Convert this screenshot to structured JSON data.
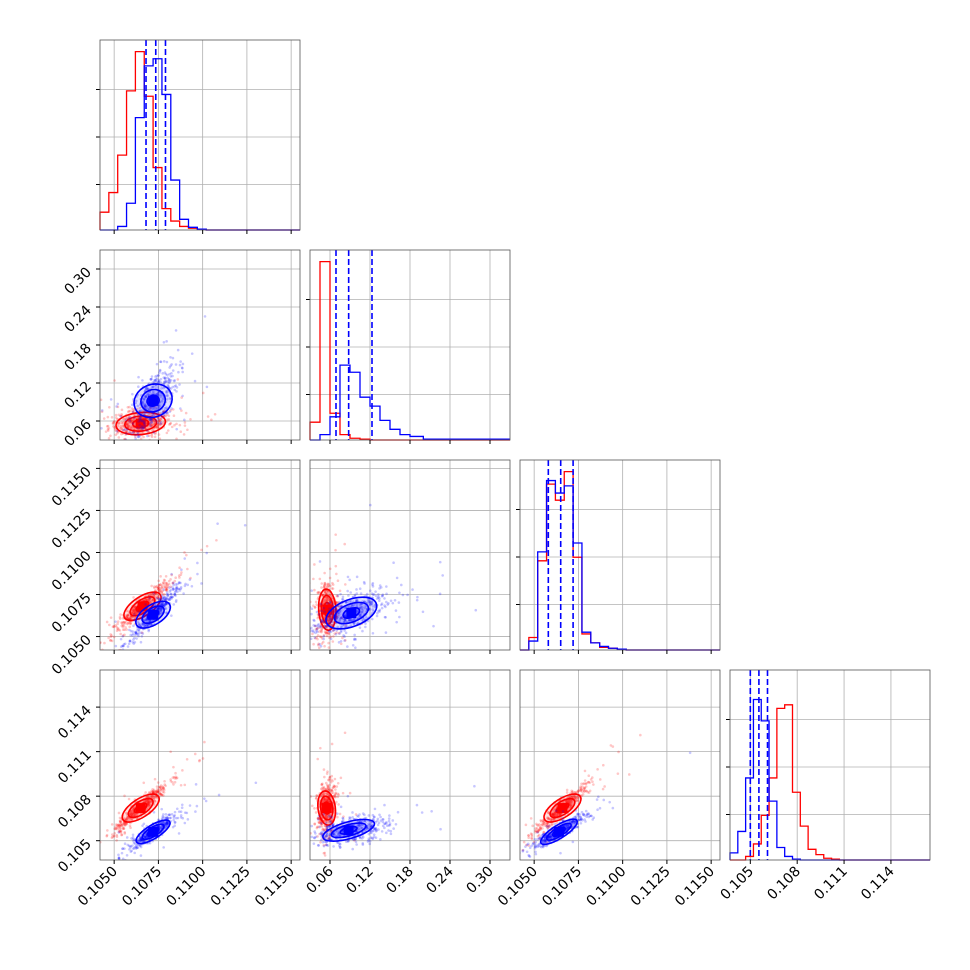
{
  "chart_data": {
    "type": "corner",
    "colors": {
      "blue": "#0000ff",
      "red": "#ff0000",
      "grid": "#b0b0b0",
      "frame": "#555555"
    },
    "params": [
      {
        "lim": [
          0.1042,
          0.1155
        ],
        "ticks": [
          "0.1050",
          "0.1075",
          "0.1100",
          "0.1125",
          "0.1150"
        ],
        "tick_values": [
          0.105,
          0.1075,
          0.11,
          0.1125,
          0.115
        ],
        "rotation": 45
      },
      {
        "lim": [
          0.03,
          0.33
        ],
        "ticks": [
          "0.06",
          "0.12",
          "0.18",
          "0.24",
          "0.30"
        ],
        "tick_values": [
          0.06,
          0.12,
          0.18,
          0.24,
          0.3
        ],
        "rotation": 45
      },
      {
        "lim": [
          0.1042,
          0.1155
        ],
        "ticks": [
          "0.1050",
          "0.1075",
          "0.1100",
          "0.1125",
          "0.1150"
        ],
        "tick_values": [
          0.105,
          0.1075,
          0.11,
          0.1125,
          0.115
        ],
        "rotation": 45
      },
      {
        "lim": [
          0.1037,
          0.1165
        ],
        "ticks": [
          "0.105",
          "0.108",
          "0.111",
          "0.114"
        ],
        "tick_values": [
          0.105,
          0.108,
          0.111,
          0.114
        ],
        "rotation": 45
      }
    ],
    "histograms": [
      {
        "param": 0,
        "red": {
          "edges": [
            0.1042,
            0.1047,
            0.1052,
            0.1057,
            0.1062,
            0.1067,
            0.1072,
            0.1077,
            0.1082,
            0.1087,
            0.1092,
            0.1097,
            0.1102,
            0.1155
          ],
          "counts": [
            0.1,
            0.21,
            0.42,
            0.78,
            1.0,
            0.75,
            0.35,
            0.12,
            0.05,
            0.02,
            0.01,
            0.005,
            0.0
          ]
        },
        "blue": {
          "edges": [
            0.1042,
            0.1047,
            0.1052,
            0.1057,
            0.1062,
            0.1067,
            0.1072,
            0.1077,
            0.1082,
            0.1087,
            0.1092,
            0.1097,
            0.1102,
            0.1155
          ],
          "counts": [
            0.0,
            0.0,
            0.02,
            0.15,
            0.63,
            0.92,
            0.96,
            0.76,
            0.28,
            0.06,
            0.015,
            0.005,
            0.0
          ]
        },
        "quantiles": [
          0.1068,
          0.10735,
          0.1079
        ]
      },
      {
        "param": 1,
        "red": {
          "edges": [
            0.03,
            0.045,
            0.06,
            0.075,
            0.09,
            0.105,
            0.12,
            0.135,
            0.15,
            0.165,
            0.18,
            0.2,
            0.33
          ],
          "counts": [
            0.1,
            1.0,
            0.15,
            0.03,
            0.01,
            0.005,
            0.0,
            0.0,
            0.0,
            0.0,
            0.0,
            0.0
          ]
        },
        "blue": {
          "edges": [
            0.03,
            0.045,
            0.06,
            0.075,
            0.09,
            0.105,
            0.12,
            0.135,
            0.15,
            0.165,
            0.18,
            0.2,
            0.33
          ],
          "counts": [
            0.0,
            0.03,
            0.13,
            0.42,
            0.38,
            0.24,
            0.19,
            0.11,
            0.06,
            0.03,
            0.02,
            0.005
          ]
        },
        "quantiles": [
          0.069,
          0.088,
          0.123
        ]
      },
      {
        "param": 2,
        "red": {
          "edges": [
            0.1042,
            0.1047,
            0.1052,
            0.1057,
            0.1062,
            0.1067,
            0.1072,
            0.1077,
            0.1082,
            0.1087,
            0.1092,
            0.1097,
            0.1102,
            0.1155
          ],
          "counts": [
            0.0,
            0.07,
            0.5,
            0.93,
            0.84,
            1.0,
            0.52,
            0.09,
            0.04,
            0.015,
            0.01,
            0.005,
            0.0
          ]
        },
        "blue": {
          "edges": [
            0.1042,
            0.1047,
            0.1052,
            0.1057,
            0.1062,
            0.1067,
            0.1072,
            0.1077,
            0.1082,
            0.1087,
            0.1092,
            0.1097,
            0.1102,
            0.1155
          ],
          "counts": [
            0.0,
            0.05,
            0.55,
            0.95,
            0.88,
            0.92,
            0.6,
            0.1,
            0.04,
            0.02,
            0.01,
            0.005,
            0.0
          ]
        },
        "quantiles": [
          0.1058,
          0.1065,
          0.1072
        ]
      },
      {
        "param": 3,
        "red": {
          "edges": [
            0.1037,
            0.1042,
            0.1047,
            0.1052,
            0.1057,
            0.1062,
            0.1067,
            0.1072,
            0.1077,
            0.1082,
            0.1087,
            0.1092,
            0.1097,
            0.1102,
            0.1107,
            0.1165
          ],
          "counts": [
            0.0,
            0.0,
            0.02,
            0.09,
            0.25,
            0.46,
            0.85,
            0.87,
            0.38,
            0.19,
            0.06,
            0.03,
            0.01,
            0.005,
            0.0
          ]
        },
        "blue": {
          "edges": [
            0.1037,
            0.1042,
            0.1047,
            0.1052,
            0.1057,
            0.1062,
            0.1067,
            0.1072,
            0.1077,
            0.1082,
            0.1087,
            0.1092,
            0.1097,
            0.1102,
            0.1107,
            0.1165
          ],
          "counts": [
            0.04,
            0.16,
            0.46,
            0.9,
            0.78,
            0.33,
            0.07,
            0.02,
            0.005,
            0.0,
            0.0,
            0.0,
            0.0,
            0.0,
            0.0
          ]
        },
        "quantiles": [
          0.105,
          0.10555,
          0.1061
        ]
      }
    ],
    "scatter_panels": [
      {
        "row": 1,
        "col": 0,
        "red": {
          "center": [
            0.1065,
            0.056
          ],
          "sx": 0.0009,
          "sy": 0.011,
          "rho": 0.15,
          "n": 420,
          "levels": [
            [
              0.00045,
              0.007
            ],
            [
              0.0009,
              0.013
            ],
            [
              0.0014,
              0.019
            ]
          ]
        },
        "blue": {
          "center": [
            0.1072,
            0.092
          ],
          "sx": 0.0007,
          "sy": 0.028,
          "rho": 0.65,
          "n": 420,
          "levels": [
            [
              0.00035,
              0.013
            ],
            [
              0.0007,
              0.027
            ],
            [
              0.0011,
              0.04
            ]
          ]
        }
      },
      {
        "row": 2,
        "col": 0,
        "red": {
          "center": [
            0.1066,
            0.1068
          ],
          "sx": 0.0008,
          "sy": 0.0008,
          "rho": 0.95,
          "n": 420,
          "levels": [
            [
              0.0004,
              0.0004
            ],
            [
              0.0008,
              0.0008
            ],
            [
              0.0012,
              0.0012
            ]
          ]
        },
        "blue": {
          "center": [
            0.1072,
            0.1063
          ],
          "sx": 0.0007,
          "sy": 0.0008,
          "rho": 0.93,
          "n": 420,
          "levels": [
            [
              0.00035,
              0.0004
            ],
            [
              0.0007,
              0.0008
            ],
            [
              0.0011,
              0.0012
            ]
          ]
        }
      },
      {
        "row": 2,
        "col": 1,
        "red": {
          "center": [
            0.056,
            0.1066
          ],
          "sx": 0.008,
          "sy": 0.0009,
          "rho": 0.1,
          "n": 420,
          "levels": [
            [
              0.005,
              0.00045
            ],
            [
              0.009,
              0.0009
            ],
            [
              0.013,
              0.0013
            ]
          ]
        },
        "blue": {
          "center": [
            0.092,
            0.1064
          ],
          "sx": 0.03,
          "sy": 0.0008,
          "rho": 0.6,
          "n": 420,
          "levels": [
            [
              0.013,
              0.0004
            ],
            [
              0.027,
              0.0008
            ],
            [
              0.04,
              0.0012
            ]
          ]
        }
      },
      {
        "row": 3,
        "col": 0,
        "red": {
          "center": [
            0.1065,
            0.1072
          ],
          "sx": 0.0008,
          "sy": 0.0009,
          "rho": 0.95,
          "n": 420,
          "levels": [
            [
              0.0004,
              0.00045
            ],
            [
              0.0008,
              0.0009
            ],
            [
              0.0012,
              0.0013
            ]
          ]
        },
        "blue": {
          "center": [
            0.1072,
            0.1056
          ],
          "sx": 0.0007,
          "sy": 0.0006,
          "rho": 0.9,
          "n": 420,
          "levels": [
            [
              0.00035,
              0.0003
            ],
            [
              0.0007,
              0.0006
            ],
            [
              0.0011,
              0.0009
            ]
          ]
        }
      },
      {
        "row": 3,
        "col": 1,
        "red": {
          "center": [
            0.055,
            0.1072
          ],
          "sx": 0.007,
          "sy": 0.0009,
          "rho": 0.2,
          "n": 420,
          "levels": [
            [
              0.005,
              0.00045
            ],
            [
              0.009,
              0.0009
            ],
            [
              0.013,
              0.0013
            ]
          ]
        },
        "blue": {
          "center": [
            0.088,
            0.1057
          ],
          "sx": 0.03,
          "sy": 0.0005,
          "rho": 0.45,
          "n": 420,
          "levels": [
            [
              0.013,
              0.00025
            ],
            [
              0.027,
              0.0005
            ],
            [
              0.04,
              0.00075
            ]
          ]
        }
      },
      {
        "row": 3,
        "col": 2,
        "red": {
          "center": [
            0.1066,
            0.1072
          ],
          "sx": 0.0008,
          "sy": 0.0009,
          "rho": 0.95,
          "n": 420,
          "levels": [
            [
              0.0004,
              0.00045
            ],
            [
              0.0008,
              0.0009
            ],
            [
              0.0012,
              0.0013
            ]
          ]
        },
        "blue": {
          "center": [
            0.1064,
            0.1056
          ],
          "sx": 0.0008,
          "sy": 0.0006,
          "rho": 0.92,
          "n": 420,
          "levels": [
            [
              0.0004,
              0.0003
            ],
            [
              0.0008,
              0.0006
            ],
            [
              0.0012,
              0.0009
            ]
          ]
        }
      }
    ]
  }
}
